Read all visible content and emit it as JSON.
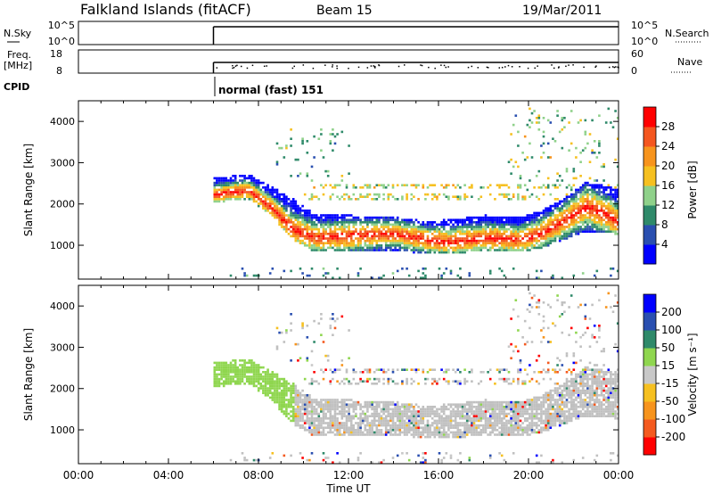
{
  "header": {
    "title": "Falkland Islands (fitACF)",
    "beam": "Beam 15",
    "date": "19/Mar/2011"
  },
  "left_labels": {
    "nsky": "N.Sky",
    "freq": "Freq.",
    "freq_unit": "[MHz]",
    "cpid": "CPID"
  },
  "right_labels": {
    "nsearch": "N.Search",
    "nave": "Nave"
  },
  "cpid_value": "normal (fast) 151",
  "colors": {
    "power": [
      "#0000ff",
      "#2a4fb0",
      "#2f8a6a",
      "#8fd18a",
      "#f6c020",
      "#f7941d",
      "#f4561f",
      "#ff0000"
    ],
    "velocity": [
      "#ff0000",
      "#f45a1f",
      "#f7941d",
      "#f6c020",
      "#c8c8c8",
      "#8fd64f",
      "#2f8a6a",
      "#2a4fb0",
      "#0000ff"
    ],
    "ground_scatter": "#c0c0c0"
  },
  "chart_data": [
    {
      "type": "line",
      "panel": "noise",
      "left_ticks": [
        "10^5",
        "10^0"
      ],
      "right_ticks": [
        "10^5",
        "10^0"
      ],
      "data_start_hour": 6.0
    },
    {
      "type": "line",
      "panel": "frequency",
      "left_ticks": [
        "18",
        "8"
      ],
      "right_ticks": [
        "60",
        "0"
      ],
      "data_start_hour": 6.0
    },
    {
      "type": "heatmap",
      "panel": "power",
      "ylabel": "Slant Range [km]",
      "yticks": [
        1000,
        2000,
        3000,
        4000
      ],
      "ylim": [
        180,
        4500
      ],
      "xlim": [
        0,
        24
      ],
      "colorbar": {
        "label": "Power [dB]",
        "ticks": [
          "4",
          "8",
          "12",
          "16",
          "20",
          "24",
          "28"
        ]
      },
      "band": {
        "x": [
          6.0,
          7.5,
          8.5,
          9.5,
          10.5,
          12.0,
          14.0,
          15.5,
          16.5,
          18.0,
          19.5,
          20.5,
          21.5,
          22.5,
          23.5,
          24.0
        ],
        "lower": [
          2000,
          2100,
          1700,
          1100,
          800,
          800,
          850,
          750,
          750,
          850,
          800,
          900,
          1100,
          1300,
          1300,
          1200
        ],
        "upper": [
          2600,
          2700,
          2400,
          2100,
          1700,
          1700,
          1650,
          1550,
          1600,
          1700,
          1650,
          1800,
          2100,
          2500,
          2400,
          2300
        ],
        "peak": [
          2200,
          2300,
          1900,
          1350,
          1150,
          1200,
          1250,
          1100,
          1050,
          1150,
          1100,
          1250,
          1550,
          1900,
          1700,
          1500
        ]
      }
    },
    {
      "type": "heatmap",
      "panel": "velocity",
      "ylabel": "Slant Range [km]",
      "yticks": [
        1000,
        2000,
        3000,
        4000
      ],
      "ylim": [
        180,
        4500
      ],
      "xlim": [
        0,
        24
      ],
      "xlabel": "Time UT",
      "xticks": [
        "00:00",
        "04:00",
        "08:00",
        "12:00",
        "16:00",
        "20:00",
        "00:00"
      ],
      "colorbar": {
        "label": "Velocity [m s⁻¹]",
        "ticks": [
          "-200",
          "-100",
          "-50",
          "-15",
          "15",
          "50",
          "100",
          "200"
        ]
      }
    }
  ]
}
